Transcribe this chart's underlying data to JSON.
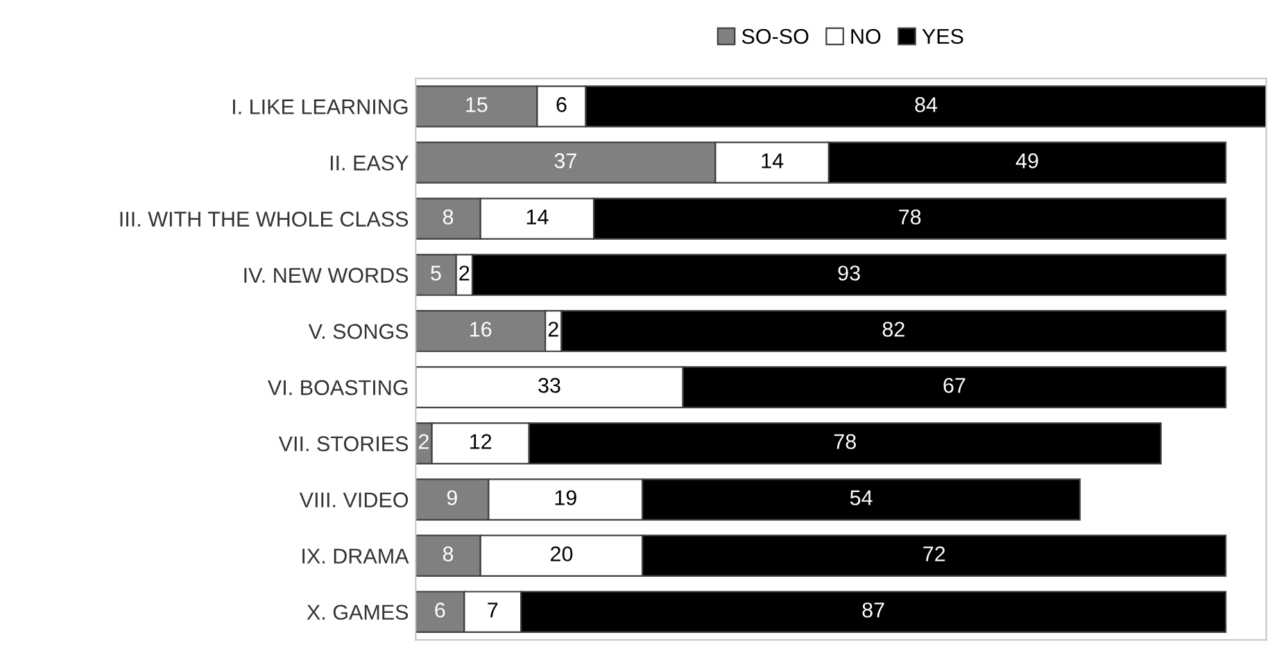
{
  "chart_data": {
    "type": "bar",
    "orientation": "horizontal",
    "stacked": true,
    "categories": [
      "I. LIKE LEARNING",
      "II. EASY",
      "III. WITH THE WHOLE CLASS",
      "IV. NEW WORDS",
      "V. SONGS",
      "VI. BOASTING",
      "VII. STORIES",
      "VIII. VIDEO",
      "IX. DRAMA",
      "X. GAMES"
    ],
    "series": [
      {
        "name": "SO-SO",
        "color": "#808080",
        "values": [
          15,
          37,
          8,
          5,
          16,
          0,
          2,
          9,
          8,
          6
        ],
        "value_labels": [
          "15",
          "37",
          "8",
          "5",
          "16",
          null,
          "2",
          "9",
          "8",
          "6"
        ]
      },
      {
        "name": "NO",
        "color": "#ffffff",
        "values": [
          6,
          14,
          14,
          2,
          2,
          33,
          12,
          19,
          20,
          7
        ],
        "value_labels": [
          "6",
          "14",
          "14",
          "2",
          "2",
          "33",
          "12",
          "19",
          "20",
          "7"
        ]
      },
      {
        "name": "YES",
        "color": "#000000",
        "values": [
          84,
          49,
          78,
          93,
          82,
          67,
          78,
          54,
          72,
          87
        ],
        "value_labels": [
          "84",
          "49",
          "78",
          "93",
          "82",
          "67",
          "78",
          "54",
          "72",
          "87"
        ]
      }
    ],
    "xlim": [
      0,
      105
    ],
    "tick_labels": "y",
    "grid": false,
    "legend": "top"
  }
}
